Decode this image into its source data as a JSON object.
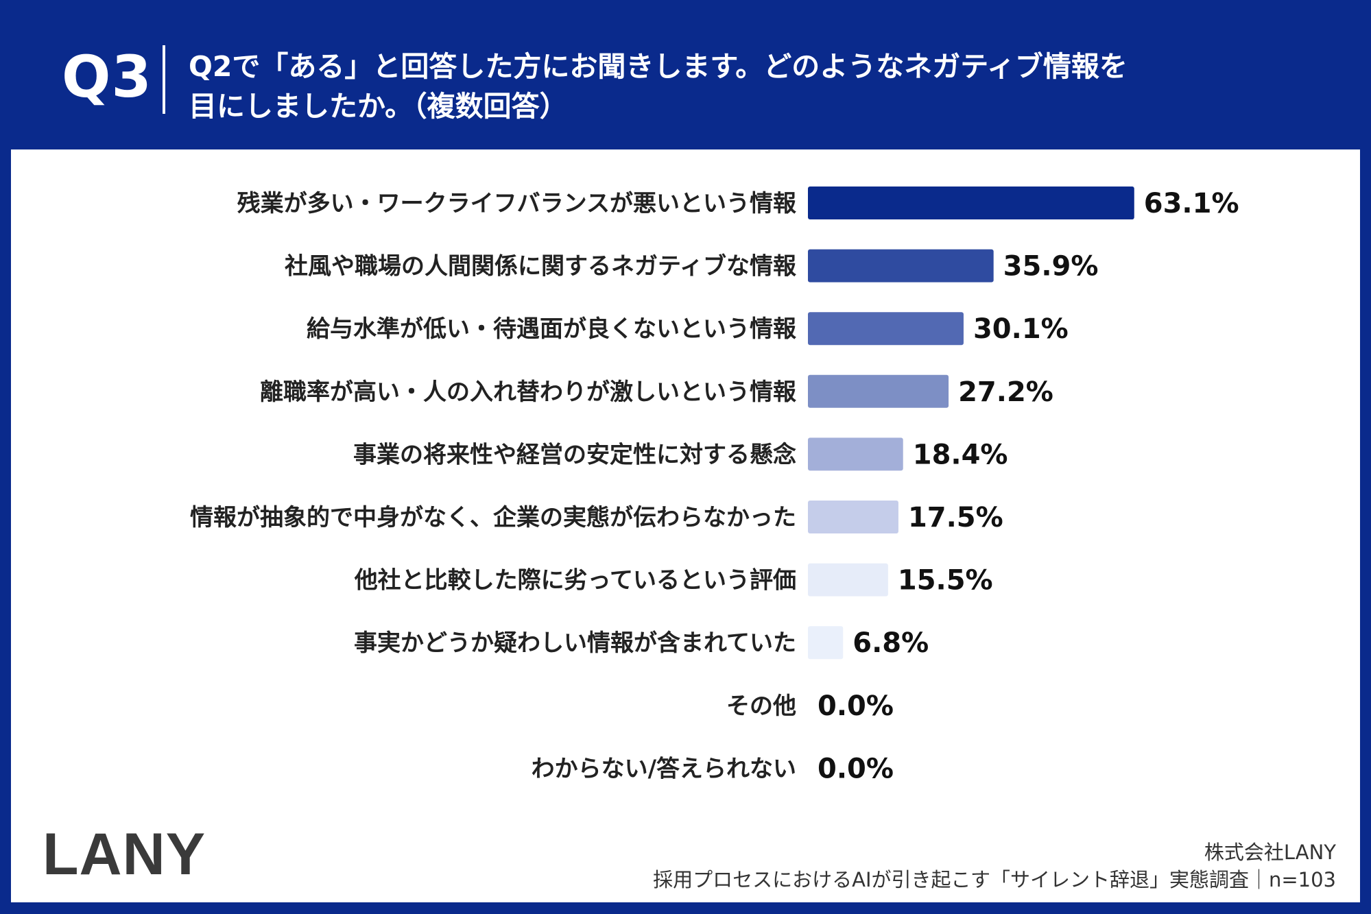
{
  "header": {
    "q_label": "Q3",
    "question_line1": "Q2で「ある」と回答した方にお聞きします。どのようなネガティブ情報を",
    "question_line2": "目にしましたか。（複数回答）"
  },
  "footer": {
    "company": "株式会社LANY",
    "source": "採用プロセスにおけるAIが引き起こす「サイレント辞退」実態調査｜n=103"
  },
  "logo": {
    "text": "LANY"
  },
  "chart_data": {
    "type": "bar",
    "orientation": "horizontal",
    "categories": [
      "残業が多い・ワークライフバランスが悪いという情報",
      "社風や職場の人間関係に関するネガティブな情報",
      "給与水準が低い・待遇面が良くないという情報",
      "離職率が高い・人の入れ替わりが激しいという情報",
      "事業の将来性や経営の安定性に対する懸念",
      "情報が抽象的で中身がなく、企業の実態が伝わらなかった",
      "他社と比較した際に劣っているという評価",
      "事実かどうか疑わしい情報が含まれていた",
      "その他",
      "わからない/答えられない"
    ],
    "values": [
      63.1,
      35.9,
      30.1,
      27.2,
      18.4,
      17.5,
      15.5,
      6.8,
      0.0,
      0.0
    ],
    "value_labels": [
      "63.1%",
      "35.9%",
      "30.1%",
      "27.2%",
      "18.4%",
      "17.5%",
      "15.5%",
      "6.8%",
      "0.0%",
      "0.0%"
    ],
    "bar_colors": [
      "#0a2a8c",
      "#2f4ba0",
      "#5269b3",
      "#7d8fc5",
      "#a3afd9",
      "#c5cdea",
      "#e6ecf9",
      "#eaf0fb",
      "#eef2fb",
      "#eef2fb"
    ],
    "xlim": [
      0,
      100
    ],
    "grid": false,
    "title": "",
    "xlabel": "",
    "ylabel": ""
  }
}
